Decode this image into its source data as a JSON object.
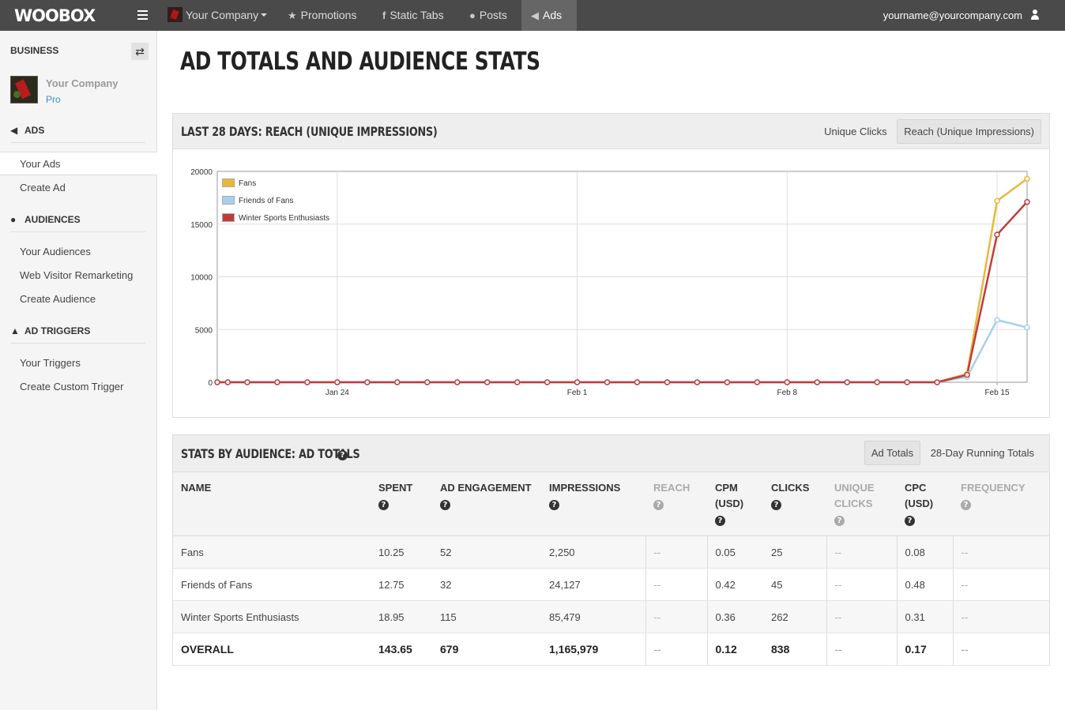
{
  "app": {
    "logo": "WOOBOX",
    "company_menu": "Your Company",
    "nav": [
      {
        "label": "Promotions",
        "icon": "star-icon"
      },
      {
        "label": "Static Tabs",
        "icon": "facebook-icon"
      },
      {
        "label": "Posts",
        "icon": "comment-icon"
      },
      {
        "label": "Ads",
        "icon": "megaphone-icon",
        "active": true
      }
    ],
    "user_email": "yourname@yourcompany.com"
  },
  "sidebar": {
    "heading": "BUSINESS",
    "company_name": "Your Company",
    "plan": "Pro",
    "sections": [
      {
        "title": "ADS",
        "icon": "megaphone-icon",
        "links": [
          "Your Ads",
          "Create Ad"
        ]
      },
      {
        "title": "AUDIENCES",
        "icon": "user-icon",
        "links": [
          "Your Audiences",
          "Web Visitor Remarketing",
          "Create Audience"
        ]
      },
      {
        "title": "AD TRIGGERS",
        "icon": "flask-icon",
        "links": [
          "Your Triggers",
          "Create Custom Trigger"
        ]
      }
    ],
    "active_link": "Your Ads"
  },
  "page": {
    "title": "AD TOTALS AND AUDIENCE STATS"
  },
  "chart_panel": {
    "title": "LAST 28 DAYS: REACH (UNIQUE IMPRESSIONS)",
    "tabs": [
      "Unique Clicks",
      "Reach (Unique Impressions)"
    ],
    "active_tab": "Reach (Unique Impressions)"
  },
  "chart_data": {
    "type": "line",
    "ylim": [
      0,
      20000
    ],
    "y_ticks": [
      0,
      5000,
      10000,
      15000,
      20000
    ],
    "x_ticks": [
      {
        "label": "Jan 24",
        "day": 4
      },
      {
        "label": "Feb 1",
        "day": 12
      },
      {
        "label": "Feb 8",
        "day": 19
      },
      {
        "label": "Feb 15",
        "day": 26
      }
    ],
    "legend_position": "top-left",
    "grid": true,
    "x_days": [
      0,
      0.35,
      1,
      2,
      3,
      4,
      5,
      6,
      7,
      8,
      9,
      10,
      11,
      12,
      13,
      14,
      15,
      16,
      17,
      18,
      19,
      20,
      21,
      22,
      23,
      24,
      25,
      26,
      27
    ],
    "series": [
      {
        "name": "Fans",
        "color": "#e8b83a",
        "values": [
          0,
          0,
          0,
          0,
          0,
          0,
          0,
          0,
          0,
          0,
          0,
          0,
          0,
          0,
          0,
          0,
          0,
          0,
          0,
          0,
          0,
          0,
          0,
          0,
          0,
          0,
          800,
          17200,
          19300
        ]
      },
      {
        "name": "Friends of Fans",
        "color": "#a9cfee",
        "values": [
          0,
          0,
          0,
          0,
          0,
          0,
          0,
          0,
          0,
          0,
          0,
          0,
          0,
          0,
          0,
          0,
          0,
          0,
          0,
          0,
          0,
          0,
          0,
          0,
          0,
          0,
          500,
          5900,
          5200
        ]
      },
      {
        "name": "Winter Sports Enthusiasts",
        "color": "#c13b3b",
        "values": [
          0,
          0,
          0,
          0,
          0,
          0,
          0,
          0,
          0,
          0,
          0,
          0,
          0,
          0,
          0,
          0,
          0,
          0,
          0,
          0,
          0,
          0,
          0,
          0,
          0,
          0,
          700,
          14000,
          17100
        ]
      }
    ]
  },
  "stats_panel": {
    "title": "STATS BY AUDIENCE: AD TOTALS",
    "tabs": [
      "Ad Totals",
      "28-Day Running Totals"
    ],
    "active_tab": "Ad Totals",
    "columns": [
      {
        "label": "NAME",
        "help": false,
        "muted": false
      },
      {
        "label": "SPENT",
        "help": true,
        "muted": false
      },
      {
        "label": "AD ENGAGEMENT",
        "help": true,
        "muted": false
      },
      {
        "label": "IMPRESSIONS",
        "help": true,
        "muted": false
      },
      {
        "label": "REACH",
        "help": true,
        "muted": true
      },
      {
        "label": "CPM (USD)",
        "help": true,
        "muted": false
      },
      {
        "label": "CLICKS",
        "help": true,
        "muted": false
      },
      {
        "label": "UNIQUE CLICKS",
        "help": true,
        "muted": true
      },
      {
        "label": "CPC (USD)",
        "help": true,
        "muted": false
      },
      {
        "label": "FREQUENCY",
        "help": true,
        "muted": true
      }
    ],
    "rows": [
      [
        "Fans",
        "10.25",
        "52",
        "2,250",
        "--",
        "0.05",
        "25",
        "--",
        "0.08",
        "--"
      ],
      [
        "Friends of Fans",
        "12.75",
        "32",
        "24,127",
        "--",
        "0.42",
        "45",
        "--",
        "0.48",
        "--"
      ],
      [
        "Winter Sports Enthusiasts",
        "18.95",
        "115",
        "85,479",
        "--",
        "0.36",
        "262",
        "--",
        "0.31",
        "--"
      ]
    ],
    "overall": [
      "OVERALL",
      "143.65",
      "679",
      "1,165,979",
      "--",
      "0.12",
      "838",
      "--",
      "0.17",
      "--"
    ]
  }
}
